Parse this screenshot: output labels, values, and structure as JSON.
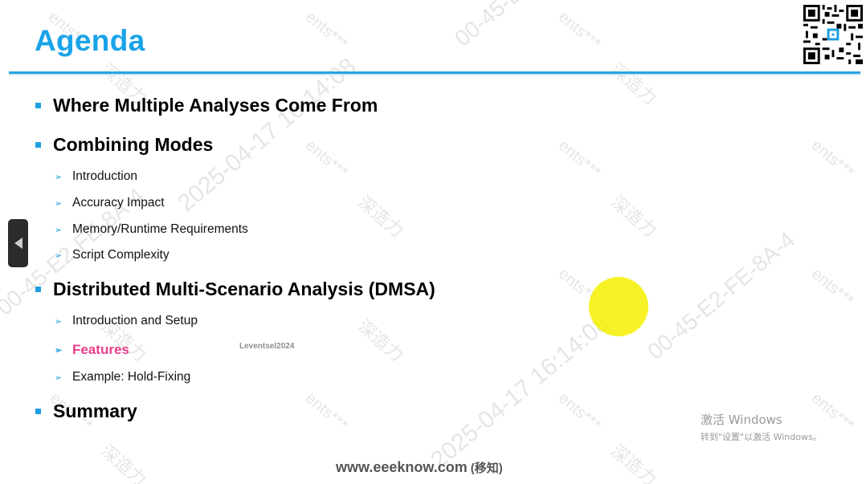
{
  "slide": {
    "title": "Agenda",
    "sections": [
      {
        "label": "Where Multiple Analyses Come From",
        "items": []
      },
      {
        "label": "Combining Modes",
        "items": [
          "Introduction",
          "Accuracy Impact",
          "Memory/Runtime Requirements",
          "Script Complexity"
        ]
      },
      {
        "label": "Distributed Multi-Scenario Analysis (DMSA)",
        "items": [
          "Introduction and Setup",
          "Features",
          "Example: Hold-Fixing"
        ]
      },
      {
        "label": "Summary",
        "items": []
      }
    ],
    "active_item": "Features"
  },
  "footer": {
    "site": "www.eeeknow.com",
    "site_suffix": "(移知)"
  },
  "small_tag": "Leventsel2024",
  "windows_activation": {
    "line1": "激活 Windows",
    "line2": "转到\"设置\"以激活 Windows。"
  },
  "watermark": {
    "company": "ents***",
    "brand": "深造力",
    "timestamp": "2025-04-17 16:14:08",
    "mac": "00-45-E2-FE-8A-4"
  },
  "colors": {
    "title": "#1aa3e8",
    "bullet": "#1ea0e0",
    "active": "#e83e8c",
    "highlight": "#f6f000"
  },
  "icons": {
    "nav": "left-arrow-icon",
    "qr": "qr-code-icon"
  }
}
